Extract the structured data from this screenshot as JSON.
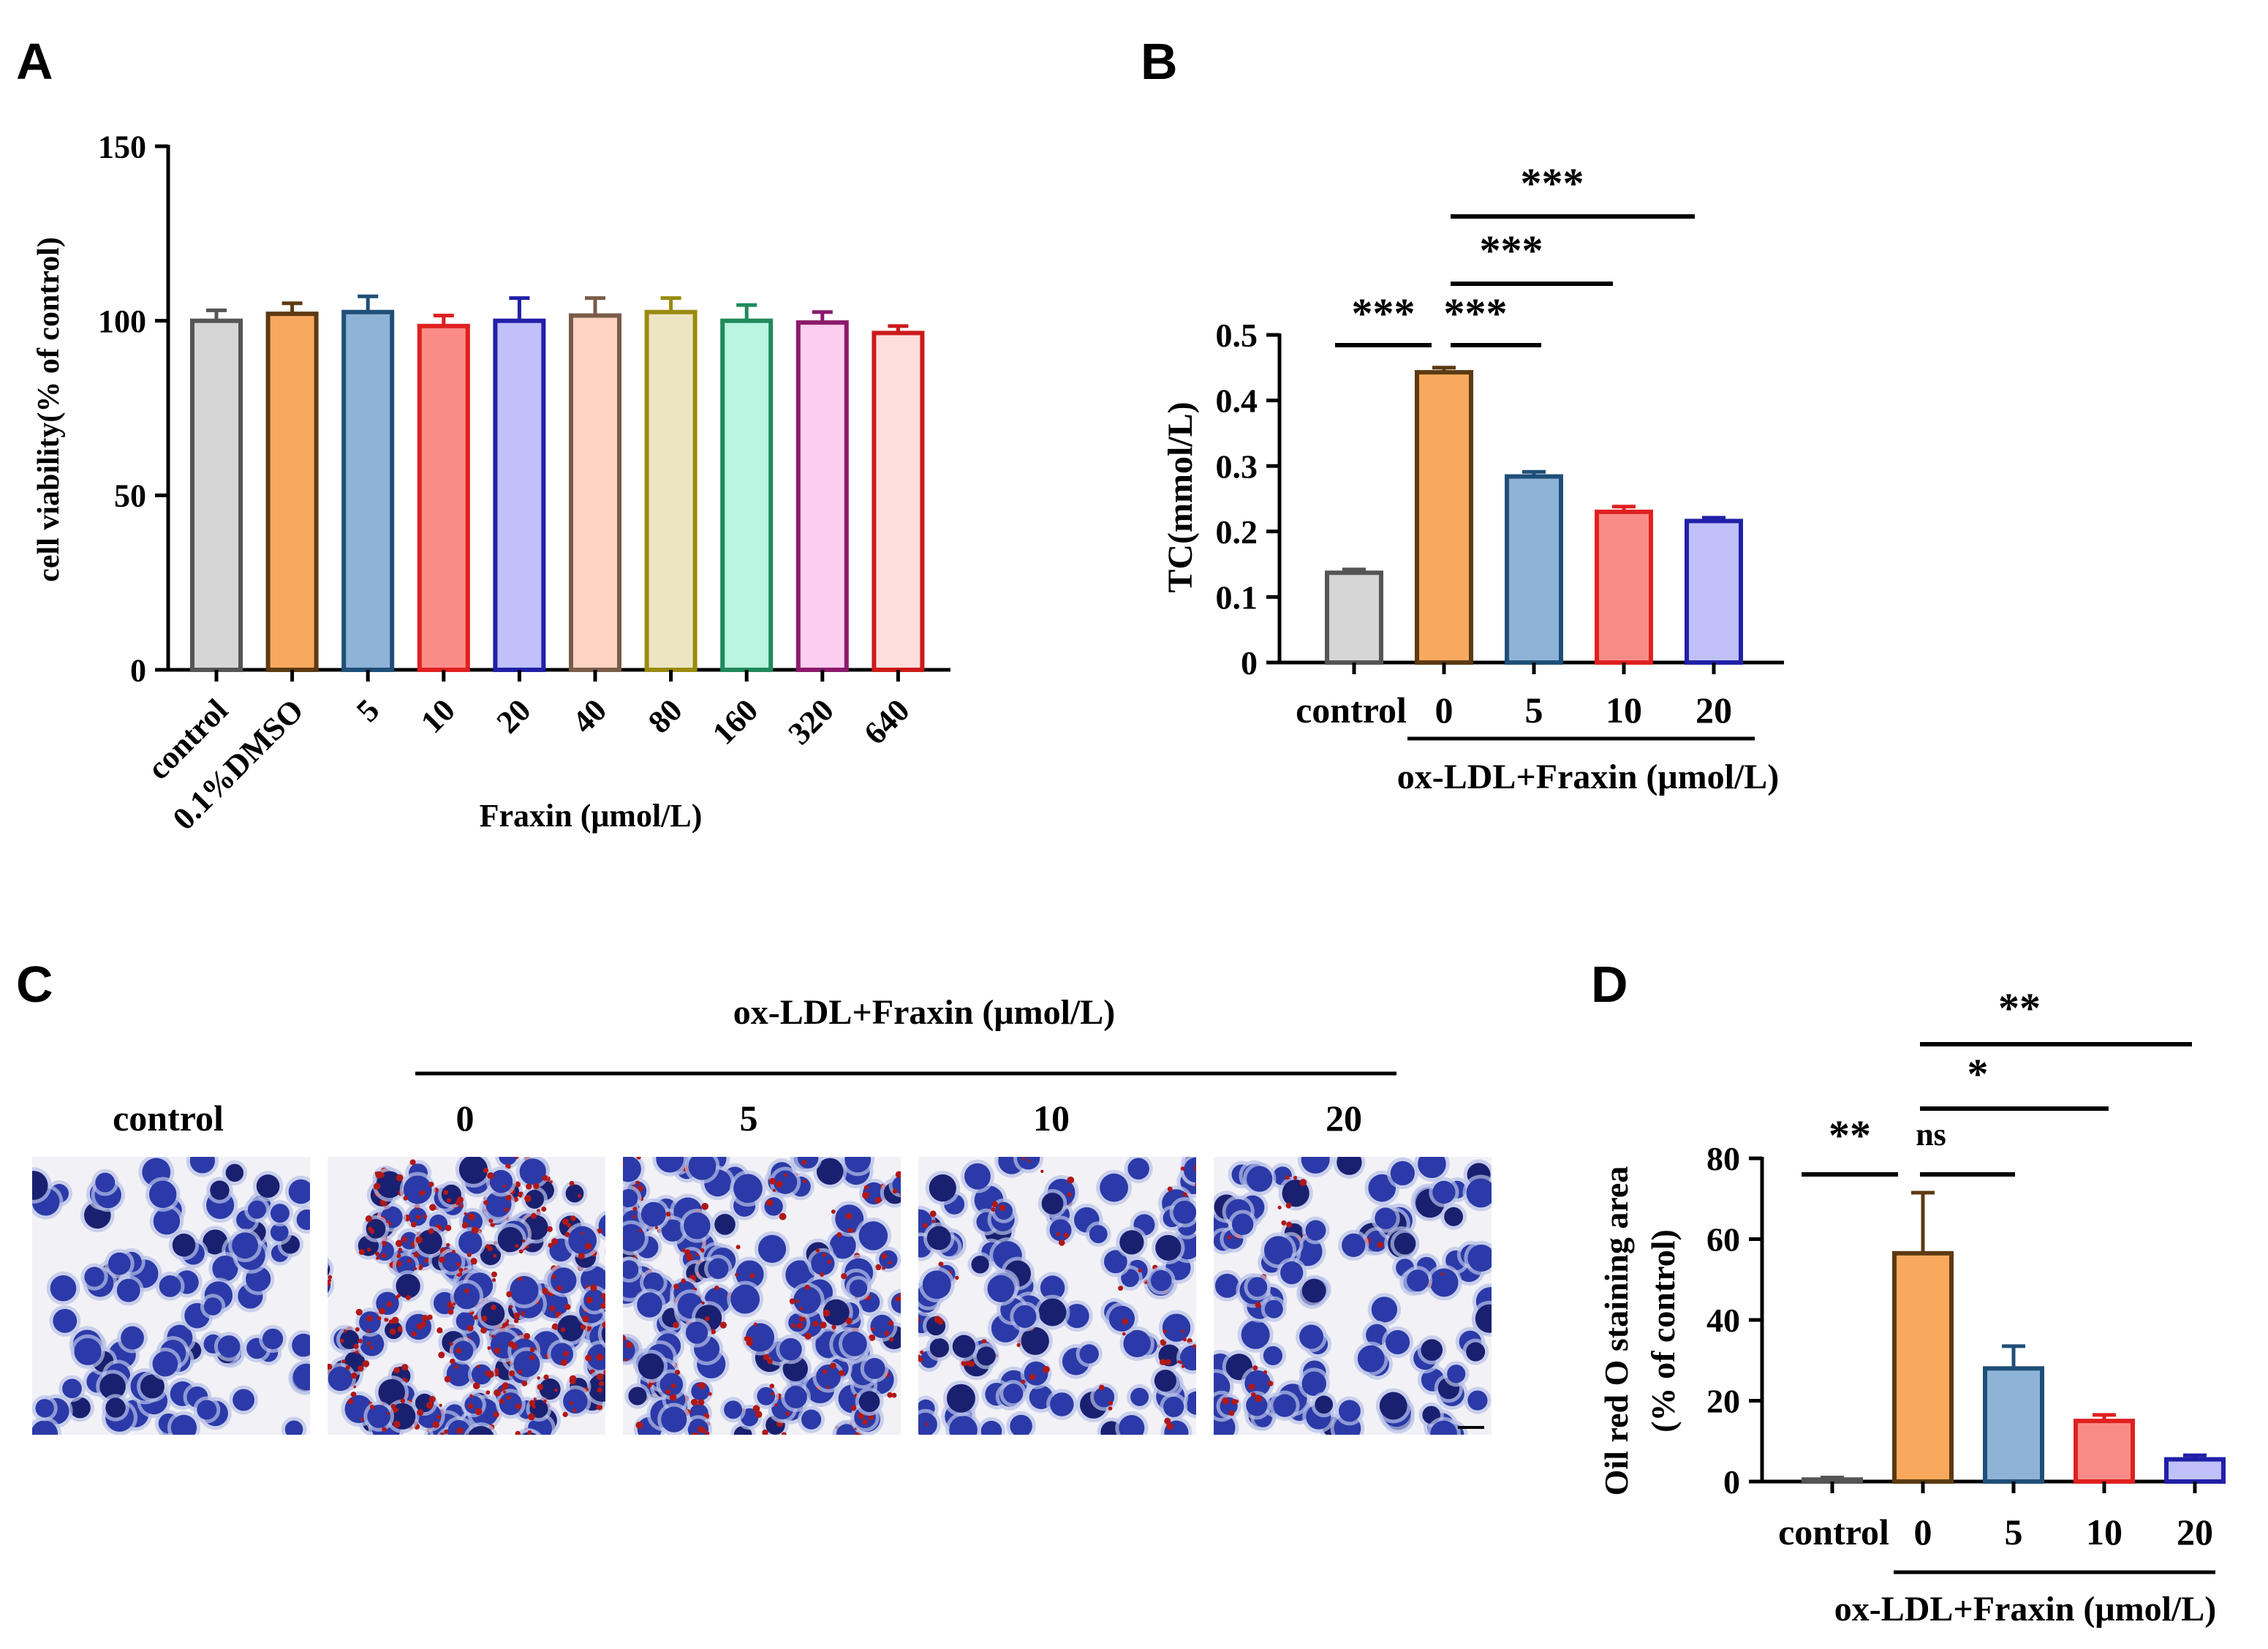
{
  "panel_labels": {
    "a": "A",
    "b": "B",
    "c": "C",
    "d": "D"
  },
  "chart_data": [
    {
      "panel": "A",
      "type": "bar",
      "title": "",
      "ylabel": "cell viability(% of control)",
      "xlabel": "Fraxin (μmol/L)",
      "ylim": [
        0,
        150
      ],
      "yticks": [
        0,
        50,
        100,
        150
      ],
      "categories": [
        "control",
        "0.1%DMSO",
        "5",
        "10",
        "20",
        "40",
        "80",
        "160",
        "320",
        "640"
      ],
      "values": [
        100,
        102,
        102.5,
        98.5,
        100,
        101.5,
        102.5,
        100,
        99.5,
        96.5
      ],
      "errors": [
        3,
        3,
        4.5,
        3,
        6.5,
        5,
        4,
        4.5,
        3,
        2
      ],
      "fill_colors": [
        "#d6d6d6",
        "#f9a95e",
        "#8fb3d6",
        "#fa8c87",
        "#c0c0fa",
        "#fdd3c3",
        "#ede5c2",
        "#b9f5e1",
        "#fccdef",
        "#fddedd"
      ],
      "stroke_colors": [
        "#555555",
        "#5c3a12",
        "#1f4f78",
        "#e02020",
        "#2020a8",
        "#7a5c4a",
        "#9a8a10",
        "#1f8a5a",
        "#8c1a6a",
        "#cc1a1a"
      ]
    },
    {
      "panel": "B",
      "type": "bar",
      "title": "",
      "ylabel": "TC(mmol/L)",
      "xlabel": "ox-LDL+Fraxin (μmol/L)",
      "ylim": [
        0,
        0.5
      ],
      "yticks": [
        "0",
        "0.1",
        "0.2",
        "0.3",
        "0.4",
        "0.5"
      ],
      "categories": [
        "control",
        "0",
        "5",
        "10",
        "20"
      ],
      "values": [
        0.137,
        0.443,
        0.284,
        0.23,
        0.216
      ],
      "errors": [
        0.005,
        0.007,
        0.007,
        0.008,
        0.005
      ],
      "fill_colors": [
        "#d6d6d6",
        "#f9a95e",
        "#8fb3d6",
        "#fa8c87",
        "#c0c0fa"
      ],
      "stroke_colors": [
        "#555555",
        "#5c3a12",
        "#1f4f78",
        "#e02020",
        "#2020a8"
      ],
      "annotations": [
        {
          "from": 0,
          "to": 1,
          "text": "***"
        },
        {
          "from": 1,
          "to": 2,
          "text": "***"
        },
        {
          "from": 1,
          "to": 3,
          "text": "***"
        },
        {
          "from": 1,
          "to": 4,
          "text": "***"
        }
      ]
    },
    {
      "panel": "D",
      "type": "bar",
      "title": "",
      "ylabel_line1": "Oil red O staining area",
      "ylabel_line2": "(% of control)",
      "xlabel": "ox-LDL+Fraxin (μmol/L)",
      "ylim": [
        0,
        80
      ],
      "yticks": [
        0,
        20,
        40,
        60,
        80
      ],
      "categories": [
        "control",
        "0",
        "5",
        "10",
        "20"
      ],
      "values": [
        0.5,
        56.5,
        28,
        15,
        5.5
      ],
      "errors": [
        0.5,
        15,
        5.5,
        1.5,
        1
      ],
      "fill_colors": [
        "#d6d6d6",
        "#f9a95e",
        "#8fb3d6",
        "#fa8c87",
        "#c0c0fa"
      ],
      "stroke_colors": [
        "#555555",
        "#5c3a12",
        "#1f4f78",
        "#e02020",
        "#2020a8"
      ],
      "annotations": [
        {
          "from": 0,
          "to": 1,
          "text": "**"
        },
        {
          "from": 1,
          "to": 2,
          "text": "ns"
        },
        {
          "from": 1,
          "to": 3,
          "text": "*"
        },
        {
          "from": 1,
          "to": 4,
          "text": "**"
        }
      ]
    }
  ],
  "panel_c": {
    "group_label": "ox-LDL+Fraxin (μmol/L)",
    "group_label_paren": "）",
    "images": [
      {
        "label": "control",
        "kind": "control"
      },
      {
        "label": "0",
        "kind": "heavy"
      },
      {
        "label": "5",
        "kind": "moderate"
      },
      {
        "label": "10",
        "kind": "light"
      },
      {
        "label": "20",
        "kind": "minimal"
      }
    ]
  },
  "colors": {
    "nucleus": "#2b3aa8",
    "nucleus_dark": "#1a2070",
    "cytoplasm": "#b8c0e8",
    "lipid": "#b01818",
    "background": "#f2f2f6"
  }
}
